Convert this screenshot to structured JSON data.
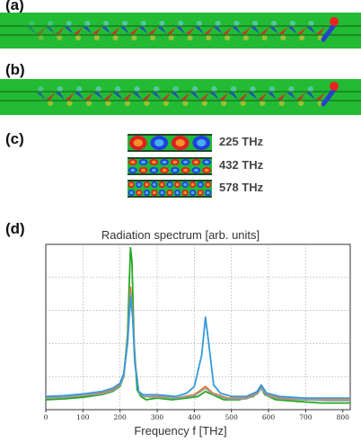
{
  "panels": {
    "a": "(a)",
    "b": "(b)",
    "c": "(c)",
    "d": "(d)"
  },
  "modes": [
    {
      "label": "225 THz",
      "cycles": 2
    },
    {
      "label": "432 THz",
      "cycles": 4
    },
    {
      "label": "578 THz",
      "cycles": 5.5
    }
  ],
  "chart_data": {
    "type": "line",
    "title": "Radiation spectrum [arb. units]",
    "xlabel": "Frequency f [THz]",
    "ylabel": "",
    "xlim": [
      0,
      820
    ],
    "ylim": [
      0,
      1
    ],
    "xticks": [
      0,
      100,
      200,
      300,
      400,
      500,
      600,
      700,
      800
    ],
    "grid": true,
    "series": [
      {
        "color": "#22aa22",
        "values": [
          [
            0,
            0.06
          ],
          [
            50,
            0.065
          ],
          [
            100,
            0.075
          ],
          [
            150,
            0.09
          ],
          [
            180,
            0.11
          ],
          [
            200,
            0.14
          ],
          [
            210,
            0.2
          ],
          [
            220,
            0.45
          ],
          [
            228,
            0.98
          ],
          [
            232,
            0.9
          ],
          [
            238,
            0.4
          ],
          [
            246,
            0.12
          ],
          [
            256,
            0.08
          ],
          [
            270,
            0.06
          ],
          [
            300,
            0.07
          ],
          [
            340,
            0.06
          ],
          [
            380,
            0.07
          ],
          [
            410,
            0.08
          ],
          [
            430,
            0.11
          ],
          [
            450,
            0.09
          ],
          [
            480,
            0.06
          ],
          [
            520,
            0.06
          ],
          [
            560,
            0.08
          ],
          [
            578,
            0.14
          ],
          [
            590,
            0.09
          ],
          [
            620,
            0.06
          ],
          [
            680,
            0.05
          ],
          [
            740,
            0.04
          ],
          [
            800,
            0.04
          ],
          [
            820,
            0.04
          ]
        ]
      },
      {
        "color": "#ee7722",
        "values": [
          [
            0,
            0.07
          ],
          [
            50,
            0.075
          ],
          [
            100,
            0.085
          ],
          [
            150,
            0.1
          ],
          [
            180,
            0.12
          ],
          [
            200,
            0.15
          ],
          [
            210,
            0.21
          ],
          [
            220,
            0.42
          ],
          [
            228,
            0.74
          ],
          [
            234,
            0.6
          ],
          [
            240,
            0.3
          ],
          [
            250,
            0.11
          ],
          [
            262,
            0.08
          ],
          [
            300,
            0.08
          ],
          [
            350,
            0.07
          ],
          [
            400,
            0.09
          ],
          [
            430,
            0.14
          ],
          [
            450,
            0.1
          ],
          [
            490,
            0.07
          ],
          [
            540,
            0.07
          ],
          [
            570,
            0.1
          ],
          [
            580,
            0.14
          ],
          [
            595,
            0.09
          ],
          [
            630,
            0.07
          ],
          [
            700,
            0.06
          ],
          [
            760,
            0.06
          ],
          [
            820,
            0.06
          ]
        ]
      },
      {
        "color": "#999999",
        "values": [
          [
            0,
            0.07
          ],
          [
            50,
            0.075
          ],
          [
            100,
            0.085
          ],
          [
            150,
            0.095
          ],
          [
            180,
            0.115
          ],
          [
            200,
            0.145
          ],
          [
            210,
            0.2
          ],
          [
            220,
            0.41
          ],
          [
            228,
            0.72
          ],
          [
            234,
            0.58
          ],
          [
            240,
            0.29
          ],
          [
            250,
            0.105
          ],
          [
            262,
            0.08
          ],
          [
            300,
            0.075
          ],
          [
            350,
            0.07
          ],
          [
            400,
            0.085
          ],
          [
            430,
            0.13
          ],
          [
            450,
            0.095
          ],
          [
            490,
            0.065
          ],
          [
            540,
            0.065
          ],
          [
            570,
            0.095
          ],
          [
            580,
            0.13
          ],
          [
            595,
            0.085
          ],
          [
            630,
            0.065
          ],
          [
            700,
            0.06
          ],
          [
            760,
            0.055
          ],
          [
            820,
            0.055
          ]
        ]
      },
      {
        "color": "#3399dd",
        "values": [
          [
            0,
            0.08
          ],
          [
            50,
            0.085
          ],
          [
            100,
            0.095
          ],
          [
            150,
            0.11
          ],
          [
            180,
            0.13
          ],
          [
            200,
            0.16
          ],
          [
            210,
            0.22
          ],
          [
            220,
            0.4
          ],
          [
            228,
            0.68
          ],
          [
            234,
            0.56
          ],
          [
            240,
            0.28
          ],
          [
            250,
            0.11
          ],
          [
            262,
            0.09
          ],
          [
            300,
            0.09
          ],
          [
            350,
            0.08
          ],
          [
            380,
            0.1
          ],
          [
            400,
            0.14
          ],
          [
            420,
            0.33
          ],
          [
            430,
            0.56
          ],
          [
            440,
            0.38
          ],
          [
            452,
            0.15
          ],
          [
            470,
            0.1
          ],
          [
            500,
            0.08
          ],
          [
            540,
            0.08
          ],
          [
            570,
            0.11
          ],
          [
            580,
            0.15
          ],
          [
            595,
            0.1
          ],
          [
            630,
            0.08
          ],
          [
            700,
            0.07
          ],
          [
            760,
            0.07
          ],
          [
            820,
            0.07
          ]
        ]
      }
    ]
  }
}
